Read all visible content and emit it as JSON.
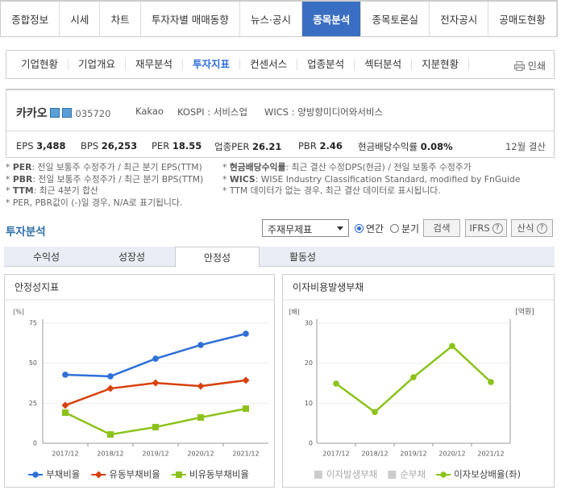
{
  "main_tabs": {
    "items": [
      "종합정보",
      "시세",
      "차트",
      "투자자별 매매동향",
      "뉴스·공시",
      "종목분석",
      "종목토론실",
      "전자공시",
      "공매도현황"
    ],
    "active": 5
  },
  "sub_tabs": {
    "items": [
      "기업현황",
      "기업개요",
      "재무분석",
      "투자지표",
      "컨센서스",
      "업종분석",
      "섹터분석",
      "지분현황"
    ],
    "active": 3
  },
  "print": "인쇄",
  "company": {
    "name": "카카오",
    "code": "035720",
    "eng": "Kakao",
    "market": "KOSPI : 서비스업",
    "wics": "WICS : 양방향미디어와서비스",
    "metrics": [
      {
        "label": "EPS",
        "value": "3,488"
      },
      {
        "label": "BPS",
        "value": "26,253"
      },
      {
        "label": "PER",
        "value": "18.55"
      },
      {
        "label": "업종PER",
        "value": "26.21"
      },
      {
        "label": "PBR",
        "value": "2.46"
      },
      {
        "label": "현금배당수익률",
        "value": "0.08%"
      }
    ],
    "fiscal": "12월 결산"
  },
  "notes": {
    "left": [
      {
        "bullet": "*",
        "term": "PER",
        "text": ": 전일 보통주 수정주가 / 최근 분기 EPS(TTM)"
      },
      {
        "bullet": "*",
        "term": "PBR",
        "text": ": 전일 보통주 수정주가 / 최근 분기 BPS(TTM)"
      },
      {
        "bullet": "*",
        "term": "TTM",
        "text": ": 최근 4분기 합산"
      },
      {
        "bullet": "*",
        "term": "",
        "text": "PER, PBR값이 (-)일 경우, N/A로 표기됩니다."
      }
    ],
    "right": [
      {
        "bullet": "*",
        "term": "현금배당수익률",
        "text": ": 최근 결산 수정DPS(현금) / 전일 보통주 수정주가"
      },
      {
        "bullet": "*",
        "term": "WICS",
        "text": ": WISE Industry Classification Standard, modified by FnGuide"
      },
      {
        "bullet": "*",
        "term": "",
        "text": "TTM 데이터가 없는 경우, 최근 결산 데이터로 표시됩니다."
      }
    ]
  },
  "analysis": {
    "title": "투자분석",
    "select": "주재무제표",
    "radios": [
      {
        "label": "연간",
        "checked": true
      },
      {
        "label": "분기",
        "checked": false
      }
    ],
    "search": "검색",
    "ifrs": "IFRS",
    "formula": "산식",
    "help": "?"
  },
  "analysis_tabs": {
    "items": [
      "수익성",
      "성장성",
      "안정성",
      "활동성"
    ],
    "active": 2
  },
  "charts": [
    {
      "type": "line",
      "title": "안정성지표",
      "y_label": "[%]",
      "categories": [
        "2017/12",
        "2018/12",
        "2019/12",
        "2020/12",
        "2021/12"
      ],
      "ylim": [
        0,
        75
      ],
      "yticks": [
        0,
        25,
        50,
        75
      ],
      "grid": true,
      "series": [
        {
          "name": "부채비율",
          "color": "#2f6fd8",
          "marker": "circle",
          "values": [
            42.8,
            41.8,
            52.8,
            61.4,
            68.4
          ]
        },
        {
          "name": "유동부채비율",
          "color": "#d8400c",
          "marker": "diamond",
          "values": [
            23.7,
            34.2,
            37.7,
            35.7,
            39.3
          ]
        },
        {
          "name": "비유동부채비율",
          "color": "#8cc21a",
          "marker": "square",
          "values": [
            19.1,
            5.5,
            10.1,
            16.1,
            21.6
          ]
        }
      ]
    },
    {
      "type": "line",
      "title": "이자비용발생부채",
      "y_label": "[배]",
      "y2_label": "[억원]",
      "categories": [
        "2017/12",
        "2018/12",
        "2019/12",
        "2020/12",
        "2021/12"
      ],
      "ylim": [
        0,
        30
      ],
      "yticks": [
        0,
        10,
        20,
        30
      ],
      "grid": true,
      "legend_off": [
        {
          "name": "이자발생부채",
          "color": "#cccccc"
        },
        {
          "name": "순부채",
          "color": "#cccccc"
        }
      ],
      "series": [
        {
          "name": "이자보상배율(좌)",
          "color": "#8cc21a",
          "marker": "circle",
          "values": [
            14.9,
            7.8,
            16.5,
            24.3,
            15.3
          ]
        }
      ]
    }
  ]
}
